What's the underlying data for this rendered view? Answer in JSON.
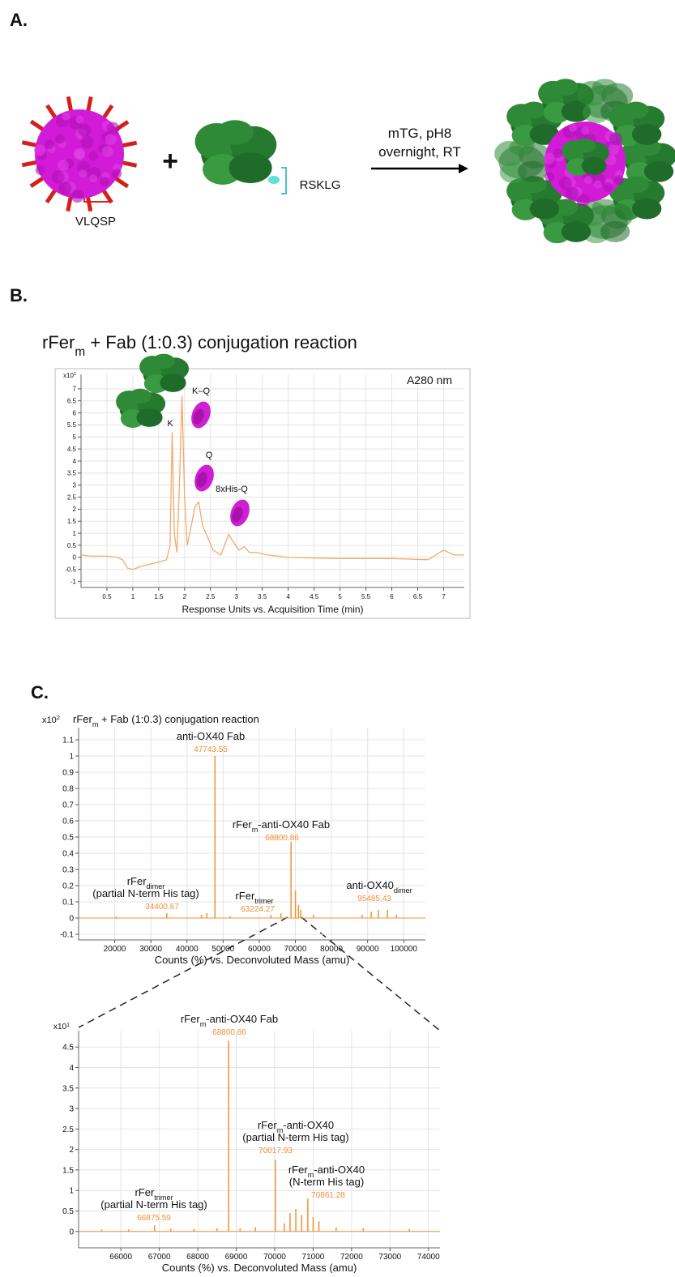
{
  "panel_labels": [
    "A.",
    "B.",
    "C."
  ],
  "scheme": {
    "left_label": "VLQSP",
    "plus": "+",
    "right_label": "RSKLG",
    "conditions": [
      "mTG, pH8",
      "overnight, RT"
    ]
  },
  "chart_data": [
    {
      "type": "line",
      "title": [
        "rFer",
        "m",
        " + Fab (1:0.3) conjugation reaction"
      ],
      "y_multiplier": [
        "x10",
        "1"
      ],
      "xlabel": "Response Units vs. Acquisition Time (min)",
      "annotations": [
        "A280 nm"
      ],
      "peak_labels": [
        "K",
        "K–Q",
        "Q",
        "8xHis-Q"
      ],
      "color": "#f5a86a",
      "grid": true,
      "xlim": [
        0,
        7.4
      ],
      "ylim": [
        -1.25,
        7.6
      ],
      "xticks": [
        0.5,
        1,
        1.5,
        2,
        2.5,
        3,
        3.5,
        4,
        4.5,
        5,
        5.5,
        6,
        6.5,
        7
      ],
      "yticks": [
        -1,
        -0.5,
        0,
        0.5,
        1,
        1.5,
        2,
        2.5,
        3,
        3.5,
        4,
        4.5,
        5,
        5.5,
        6,
        6.5,
        7
      ],
      "x": [
        0,
        0.2,
        0.5,
        0.7,
        0.8,
        0.9,
        1.0,
        1.2,
        1.5,
        1.65,
        1.72,
        1.76,
        1.8,
        1.85,
        1.9,
        1.95,
        2.0,
        2.05,
        2.1,
        2.2,
        2.27,
        2.35,
        2.45,
        2.55,
        2.7,
        2.85,
        2.95,
        3.05,
        3.15,
        3.25,
        3.4,
        3.6,
        4,
        5,
        6,
        6.7,
        6.85,
        7,
        7.2,
        7.4
      ],
      "values": [
        0.1,
        0.05,
        0.05,
        0.0,
        -0.1,
        -0.45,
        -0.5,
        -0.35,
        -0.2,
        -0.1,
        0.5,
        5.2,
        1.0,
        0.2,
        3.0,
        6.7,
        2.5,
        0.5,
        1.0,
        2.1,
        2.3,
        1.3,
        0.8,
        0.3,
        0.1,
        0.95,
        0.6,
        0.3,
        0.45,
        0.2,
        0.2,
        0.1,
        0.0,
        -0.05,
        -0.05,
        -0.1,
        0.1,
        0.3,
        0.1,
        0.1
      ]
    },
    {
      "type": "stem",
      "title": [
        "rFer",
        "m",
        " + Fab (1:0.3) conjugation reaction"
      ],
      "y_multiplier": [
        "x10",
        "2"
      ],
      "xlabel": "Counts (%) vs. Deconvoluted Mass (amu)",
      "color": "#f0913a",
      "grid": true,
      "xlim": [
        10000,
        106000
      ],
      "ylim": [
        -0.135,
        1.175
      ],
      "xticks": [
        20000,
        30000,
        40000,
        50000,
        60000,
        70000,
        80000,
        90000,
        100000
      ],
      "yticks": [
        -0.1,
        0,
        0.1,
        0.2,
        0.3,
        0.4,
        0.5,
        0.6,
        0.7,
        0.8,
        0.9,
        1,
        1.1
      ],
      "x": [
        20400,
        34400.67,
        44000,
        45500,
        47743.55,
        52000,
        63224.27,
        66000,
        68800.86,
        70017.93,
        70861.28,
        71500,
        75000,
        88500,
        91000,
        93000,
        95485.43,
        98000
      ],
      "values": [
        0.01,
        0.03,
        0.02,
        0.03,
        1.0,
        0.01,
        0.02,
        0.03,
        0.47,
        0.17,
        0.08,
        0.05,
        0.02,
        0.02,
        0.04,
        0.05,
        0.05,
        0.02
      ],
      "annotations": [
        {
          "lines": [
            [
              "rFer",
              "dimer"
            ],
            [
              "(partial N-term His tag)"
            ]
          ],
          "mass": 34400.67
        },
        {
          "lines": [
            [
              "anti-OX40 Fab"
            ]
          ],
          "mass": 47743.55
        },
        {
          "lines": [
            [
              "rFer",
              "trimer"
            ]
          ],
          "mass": 63224.27
        },
        {
          "lines": [
            [
              "rFer",
              "m",
              "-anti-OX40 Fab"
            ]
          ],
          "mass": 68800.86
        },
        {
          "lines": [
            [
              "anti-OX40",
              "dimer"
            ]
          ],
          "mass": 95485.43
        }
      ]
    },
    {
      "type": "stem",
      "y_multiplier": [
        "x10",
        "1"
      ],
      "xlabel": "Counts (%) vs. Deconvoluted Mass (amu)",
      "color": "#f0913a",
      "grid": true,
      "xlim": [
        64900,
        74300
      ],
      "ylim": [
        -0.4,
        4.9
      ],
      "xticks": [
        66000,
        67000,
        68000,
        69000,
        70000,
        71000,
        72000,
        73000,
        74000
      ],
      "yticks": [
        0,
        0.5,
        1,
        1.5,
        2,
        2.5,
        3,
        3.5,
        4,
        4.5
      ],
      "x": [
        65500,
        66200,
        66875.59,
        67300,
        67900,
        68500,
        68800.86,
        69100,
        69500,
        70017.93,
        70250,
        70400,
        70550,
        70700,
        70861.28,
        71000,
        71150,
        71600,
        72300,
        73500
      ],
      "values": [
        0.05,
        0.05,
        0.15,
        0.07,
        0.06,
        0.08,
        4.65,
        0.07,
        0.1,
        1.75,
        0.2,
        0.45,
        0.55,
        0.4,
        0.8,
        0.35,
        0.25,
        0.1,
        0.08,
        0.06
      ],
      "annotations": [
        {
          "lines": [
            [
              "rFer",
              "trimer"
            ],
            [
              "(partial N-term His tag)"
            ]
          ],
          "mass": 66875.59
        },
        {
          "lines": [
            [
              "rFer",
              "m",
              "-anti-OX40 Fab"
            ]
          ],
          "mass": 68800.86
        },
        {
          "lines": [
            [
              "rFer",
              "m",
              "-anti-OX40"
            ],
            [
              "(partial N-term His tag)"
            ]
          ],
          "mass": 70017.93
        },
        {
          "lines": [
            [
              "rFer",
              "m",
              "-anti-OX40"
            ],
            [
              "(N-term His tag)"
            ]
          ],
          "mass": 70861.28
        }
      ]
    }
  ]
}
